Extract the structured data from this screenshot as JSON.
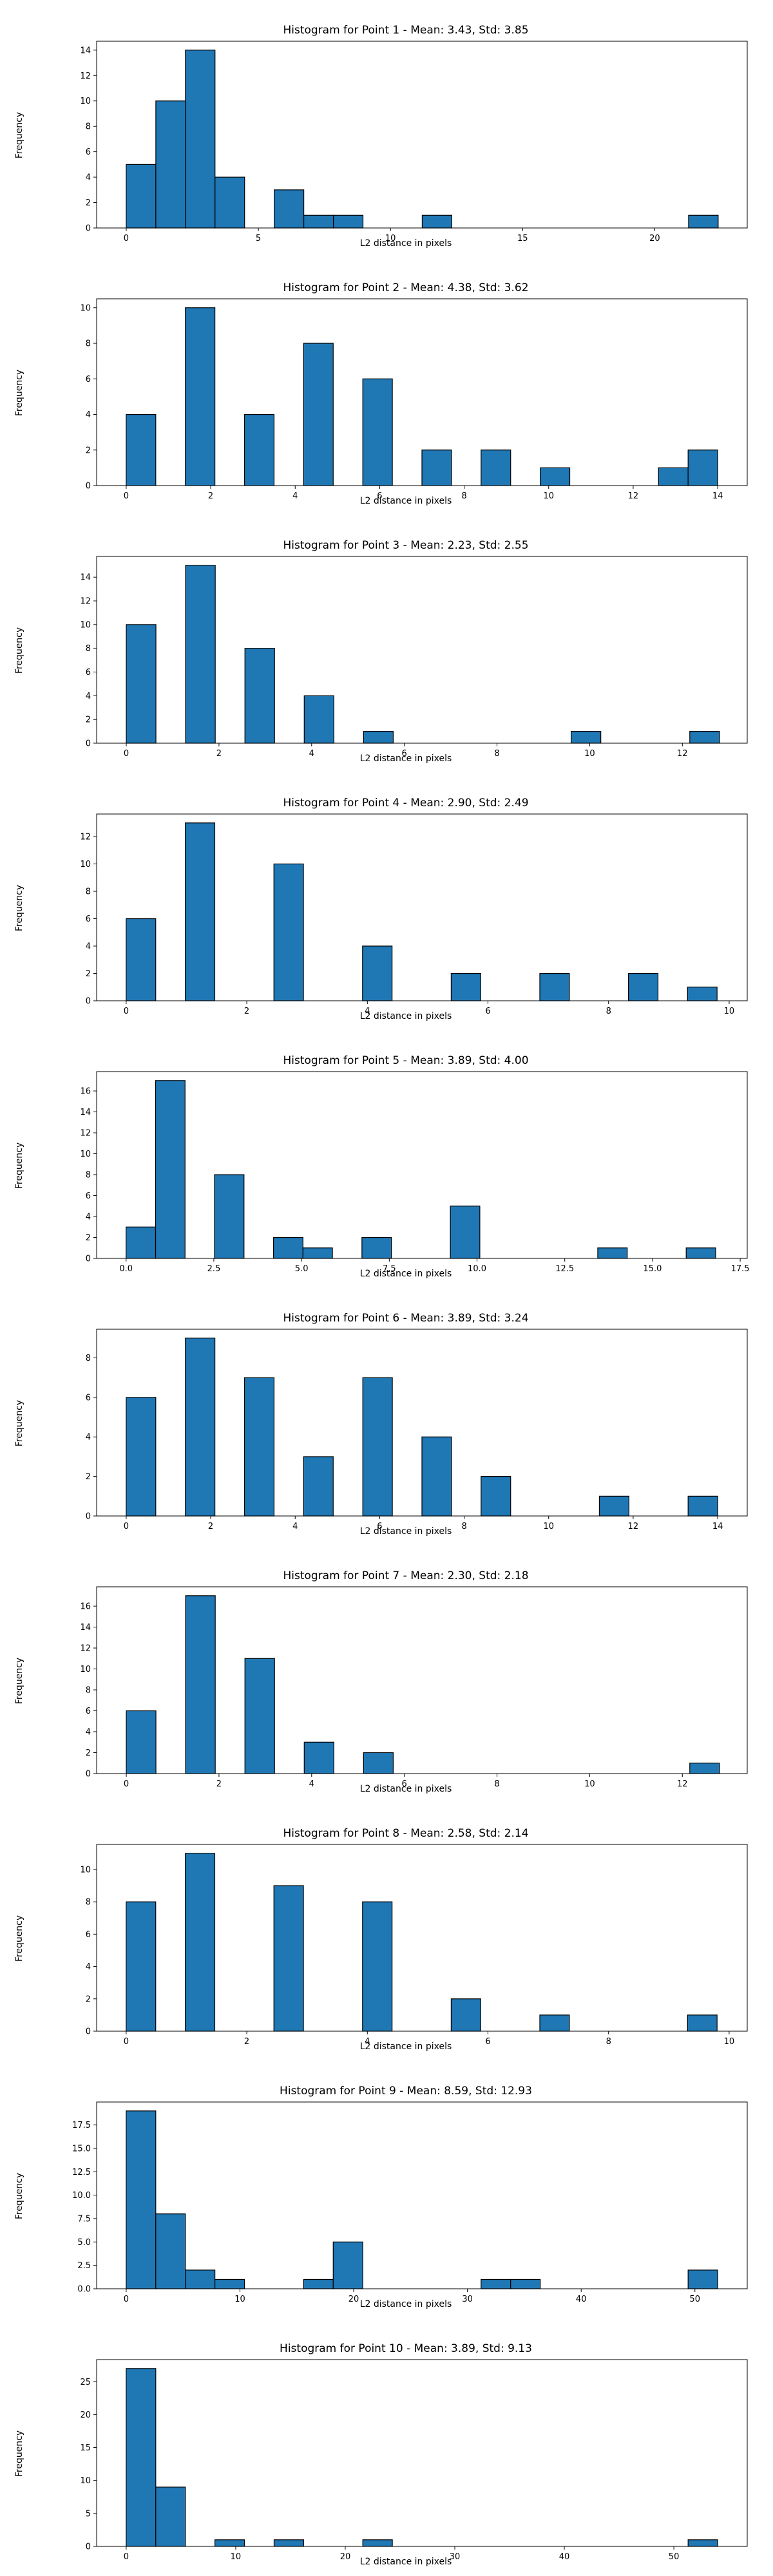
{
  "chart_data": [
    {
      "type": "bar",
      "title": "Histogram for Point 1 - Mean: 3.43, Std: 3.85",
      "xlabel": "L2 distance in pixels",
      "ylabel": "Frequency",
      "bar_color": "#1f77b4",
      "xlim": [
        -1.12,
        23.5
      ],
      "ylim": [
        0,
        14.7
      ],
      "xticks": [
        "0",
        "5",
        "10",
        "15",
        "20"
      ],
      "yticks": [
        "0",
        "2",
        "4",
        "6",
        "8",
        "10",
        "12",
        "14"
      ],
      "bins": [
        [
          0,
          1.12,
          5
        ],
        [
          1.12,
          2.24,
          10
        ],
        [
          2.24,
          3.36,
          14
        ],
        [
          3.36,
          4.48,
          4
        ],
        [
          5.6,
          6.72,
          3
        ],
        [
          6.72,
          7.84,
          1
        ],
        [
          7.84,
          8.96,
          1
        ],
        [
          11.2,
          12.32,
          1
        ],
        [
          21.28,
          22.4,
          1
        ]
      ]
    },
    {
      "type": "bar",
      "title": "Histogram for Point 2 - Mean: 4.38, Std: 3.62",
      "xlabel": "L2 distance in pixels",
      "ylabel": "Frequency",
      "bar_color": "#1f77b4",
      "xlim": [
        -0.7,
        14.7
      ],
      "ylim": [
        0,
        10.5
      ],
      "xticks": [
        "0",
        "2",
        "4",
        "6",
        "8",
        "10",
        "12",
        "14"
      ],
      "yticks": [
        "0",
        "2",
        "4",
        "6",
        "8",
        "10"
      ],
      "bins": [
        [
          0,
          0.7,
          4
        ],
        [
          1.4,
          2.1,
          10
        ],
        [
          2.8,
          3.5,
          4
        ],
        [
          4.2,
          4.9,
          8
        ],
        [
          5.6,
          6.3,
          6
        ],
        [
          7.0,
          7.7,
          2
        ],
        [
          8.4,
          9.1,
          2
        ],
        [
          9.8,
          10.5,
          1
        ],
        [
          12.6,
          13.3,
          1
        ],
        [
          13.3,
          14.0,
          2
        ]
      ]
    },
    {
      "type": "bar",
      "title": "Histogram for Point 3 - Mean: 2.23, Std: 2.55",
      "xlabel": "L2 distance in pixels",
      "ylabel": "Frequency",
      "bar_color": "#1f77b4",
      "xlim": [
        -0.64,
        13.4
      ],
      "ylim": [
        0,
        15.75
      ],
      "xticks": [
        "0",
        "2",
        "4",
        "6",
        "8",
        "10",
        "12"
      ],
      "yticks": [
        "0",
        "2",
        "4",
        "6",
        "8",
        "10",
        "12",
        "14"
      ],
      "bins": [
        [
          0,
          0.64,
          10
        ],
        [
          1.28,
          1.92,
          15
        ],
        [
          2.56,
          3.2,
          8
        ],
        [
          3.84,
          4.48,
          4
        ],
        [
          5.12,
          5.76,
          1
        ],
        [
          9.6,
          10.24,
          1
        ],
        [
          12.16,
          12.8,
          1
        ]
      ]
    },
    {
      "type": "bar",
      "title": "Histogram for Point 4 - Mean: 2.90, Std: 2.49",
      "xlabel": "L2 distance in pixels",
      "ylabel": "Frequency",
      "bar_color": "#1f77b4",
      "xlim": [
        -0.49,
        10.3
      ],
      "ylim": [
        0,
        13.65
      ],
      "xticks": [
        "0",
        "2",
        "4",
        "6",
        "8",
        "10"
      ],
      "yticks": [
        "0",
        "2",
        "4",
        "6",
        "8",
        "10",
        "12"
      ],
      "bins": [
        [
          0,
          0.49,
          6
        ],
        [
          0.98,
          1.47,
          13
        ],
        [
          2.45,
          2.94,
          10
        ],
        [
          3.92,
          4.41,
          4
        ],
        [
          5.39,
          5.88,
          2
        ],
        [
          6.86,
          7.35,
          2
        ],
        [
          8.33,
          8.82,
          2
        ],
        [
          9.31,
          9.8,
          1
        ]
      ]
    },
    {
      "type": "bar",
      "title": "Histogram for Point 5 - Mean: 3.89, Std: 4.00",
      "xlabel": "L2 distance in pixels",
      "ylabel": "Frequency",
      "bar_color": "#1f77b4",
      "xlim": [
        -0.84,
        17.7
      ],
      "ylim": [
        0,
        17.85
      ],
      "xticks": [
        "0.0",
        "2.5",
        "5.0",
        "7.5",
        "10.0",
        "12.5",
        "15.0",
        "17.5"
      ],
      "yticks": [
        "0",
        "2",
        "4",
        "6",
        "8",
        "10",
        "12",
        "14",
        "16"
      ],
      "bins": [
        [
          0,
          0.84,
          3
        ],
        [
          0.84,
          1.68,
          17
        ],
        [
          2.52,
          3.36,
          8
        ],
        [
          4.2,
          5.04,
          2
        ],
        [
          5.04,
          5.88,
          1
        ],
        [
          6.72,
          7.56,
          2
        ],
        [
          9.24,
          10.08,
          5
        ],
        [
          13.44,
          14.28,
          1
        ],
        [
          15.96,
          16.8,
          1
        ]
      ]
    },
    {
      "type": "bar",
      "title": "Histogram for Point 6 - Mean: 3.89, Std: 3.24",
      "xlabel": "L2 distance in pixels",
      "ylabel": "Frequency",
      "bar_color": "#1f77b4",
      "xlim": [
        -0.7,
        14.7
      ],
      "ylim": [
        0,
        9.45
      ],
      "xticks": [
        "0",
        "2",
        "4",
        "6",
        "8",
        "10",
        "12",
        "14"
      ],
      "yticks": [
        "0",
        "2",
        "4",
        "6",
        "8"
      ],
      "bins": [
        [
          0,
          0.7,
          6
        ],
        [
          1.4,
          2.1,
          9
        ],
        [
          2.8,
          3.5,
          7
        ],
        [
          4.2,
          4.9,
          3
        ],
        [
          5.6,
          6.3,
          7
        ],
        [
          7.0,
          7.7,
          4
        ],
        [
          8.4,
          9.1,
          2
        ],
        [
          11.2,
          11.9,
          1
        ],
        [
          13.3,
          14.0,
          1
        ]
      ]
    },
    {
      "type": "bar",
      "title": "Histogram for Point 7 - Mean: 2.30, Std: 2.18",
      "xlabel": "L2 distance in pixels",
      "ylabel": "Frequency",
      "bar_color": "#1f77b4",
      "xlim": [
        -0.64,
        13.4
      ],
      "ylim": [
        0,
        17.85
      ],
      "xticks": [
        "0",
        "2",
        "4",
        "6",
        "8",
        "10",
        "12"
      ],
      "yticks": [
        "0",
        "2",
        "4",
        "6",
        "8",
        "10",
        "12",
        "14",
        "16"
      ],
      "bins": [
        [
          0,
          0.64,
          6
        ],
        [
          1.28,
          1.92,
          17
        ],
        [
          2.56,
          3.2,
          11
        ],
        [
          3.84,
          4.48,
          3
        ],
        [
          5.12,
          5.76,
          2
        ],
        [
          12.16,
          12.8,
          1
        ]
      ]
    },
    {
      "type": "bar",
      "title": "Histogram for Point 8 - Mean: 2.58, Std: 2.14",
      "xlabel": "L2 distance in pixels",
      "ylabel": "Frequency",
      "bar_color": "#1f77b4",
      "xlim": [
        -0.49,
        10.3
      ],
      "ylim": [
        0,
        11.55
      ],
      "xticks": [
        "0",
        "2",
        "4",
        "6",
        "8",
        "10"
      ],
      "yticks": [
        "0",
        "2",
        "4",
        "6",
        "8",
        "10"
      ],
      "bins": [
        [
          0,
          0.49,
          8
        ],
        [
          0.98,
          1.47,
          11
        ],
        [
          2.45,
          2.94,
          9
        ],
        [
          3.92,
          4.41,
          8
        ],
        [
          5.39,
          5.88,
          2
        ],
        [
          6.86,
          7.35,
          1
        ],
        [
          9.31,
          9.8,
          1
        ]
      ]
    },
    {
      "type": "bar",
      "title": "Histogram for Point 9 - Mean: 8.59, Std: 12.93",
      "xlabel": "L2 distance in pixels",
      "ylabel": "Frequency",
      "bar_color": "#1f77b4",
      "xlim": [
        -2.6,
        54.6
      ],
      "ylim": [
        0,
        19.95
      ],
      "xticks": [
        "0",
        "10",
        "20",
        "30",
        "40",
        "50"
      ],
      "yticks": [
        "0.0",
        "2.5",
        "5.0",
        "7.5",
        "10.0",
        "12.5",
        "15.0",
        "17.5"
      ],
      "bins": [
        [
          0,
          2.6,
          19
        ],
        [
          2.6,
          5.2,
          8
        ],
        [
          5.2,
          7.8,
          2
        ],
        [
          7.8,
          10.4,
          1
        ],
        [
          15.6,
          18.2,
          1
        ],
        [
          18.2,
          20.8,
          5
        ],
        [
          31.2,
          33.8,
          1
        ],
        [
          33.8,
          36.4,
          1
        ],
        [
          49.4,
          52.0,
          2
        ]
      ]
    },
    {
      "type": "bar",
      "title": "Histogram for Point 10 - Mean: 3.89, Std: 9.13",
      "xlabel": "L2 distance in pixels",
      "ylabel": "Frequency",
      "bar_color": "#1f77b4",
      "xlim": [
        -2.7,
        56.7
      ],
      "ylim": [
        0,
        28.35
      ],
      "xticks": [
        "0",
        "10",
        "20",
        "30",
        "40",
        "50"
      ],
      "yticks": [
        "0",
        "5",
        "10",
        "15",
        "20",
        "25"
      ],
      "bins": [
        [
          0,
          2.7,
          27
        ],
        [
          2.7,
          5.4,
          9
        ],
        [
          8.1,
          10.8,
          1
        ],
        [
          13.5,
          16.2,
          1
        ],
        [
          21.6,
          24.3,
          1
        ],
        [
          51.3,
          54.0,
          1
        ]
      ]
    }
  ]
}
